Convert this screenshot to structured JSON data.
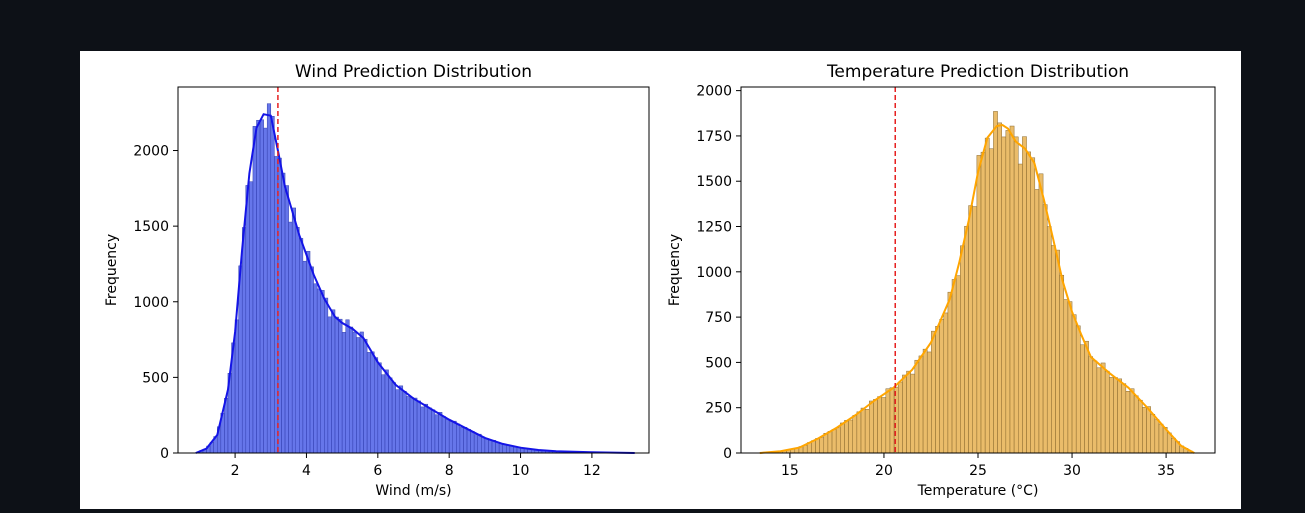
{
  "chart_data": [
    {
      "type": "histogram",
      "title": "Wind Prediction Distribution",
      "xlabel": "Wind (m/s)",
      "ylabel": "Frequency",
      "xlim": [
        0.4,
        13.6
      ],
      "ylim": [
        0,
        2420
      ],
      "xticks": [
        2,
        4,
        6,
        8,
        10,
        12
      ],
      "yticks": [
        0,
        500,
        1000,
        1500,
        2000
      ],
      "bar_color": "#4b5ee6",
      "bar_edge_color": "#3440b0",
      "kde_color": "#1414e6",
      "reference_line": {
        "x": 3.2,
        "color": "#e62020",
        "style": "dashed"
      },
      "bins": {
        "start": 1.0,
        "width": 0.1
      },
      "kde": {
        "x": [
          0.9,
          1.2,
          1.5,
          1.8,
          2.0,
          2.2,
          2.4,
          2.6,
          2.8,
          3.0,
          3.2,
          3.4,
          3.6,
          3.8,
          4.0,
          4.2,
          4.5,
          4.8,
          5.0,
          5.3,
          5.6,
          6.0,
          6.5,
          7.0,
          7.5,
          8.0,
          8.5,
          9.0,
          9.5,
          10.0,
          10.5,
          11.0,
          12.0,
          13.2
        ],
        "y": [
          0,
          30,
          120,
          420,
          800,
          1350,
          1850,
          2150,
          2240,
          2230,
          2000,
          1760,
          1600,
          1440,
          1310,
          1180,
          1020,
          900,
          860,
          820,
          760,
          600,
          450,
          360,
          290,
          220,
          160,
          100,
          60,
          35,
          20,
          12,
          5,
          0
        ]
      }
    },
    {
      "type": "histogram",
      "title": "Temperature Prediction Distribution",
      "xlabel": "Temperature (°C)",
      "ylabel": "Frequency",
      "xlim": [
        12.4,
        37.6
      ],
      "ylim": [
        0,
        2020
      ],
      "xticks": [
        15,
        20,
        25,
        30,
        35
      ],
      "yticks": [
        0,
        250,
        500,
        750,
        1000,
        1250,
        1500,
        1750,
        2000
      ],
      "bar_color": "#e8b55a",
      "bar_edge_color": "#8a6a30",
      "kde_color": "#ffa500",
      "reference_line": {
        "x": 20.6,
        "color": "#e62020",
        "style": "dashed"
      },
      "bins": {
        "start": 13.5,
        "width": 0.22
      },
      "kde": {
        "x": [
          13.4,
          14.5,
          15.5,
          16.5,
          17.5,
          18.5,
          19.5,
          20.5,
          21.5,
          22.5,
          23.5,
          24.0,
          24.5,
          25.0,
          25.5,
          26.0,
          26.3,
          26.6,
          27.0,
          27.5,
          28.0,
          28.5,
          29.0,
          29.5,
          30.0,
          30.5,
          31.0,
          32.0,
          33.0,
          34.0,
          35.0,
          35.8,
          36.5
        ],
        "y": [
          0,
          10,
          30,
          80,
          140,
          210,
          290,
          360,
          460,
          610,
          850,
          1050,
          1280,
          1550,
          1740,
          1805,
          1810,
          1790,
          1720,
          1680,
          1600,
          1400,
          1180,
          950,
          780,
          650,
          530,
          440,
          360,
          250,
          130,
          40,
          0
        ]
      }
    }
  ]
}
